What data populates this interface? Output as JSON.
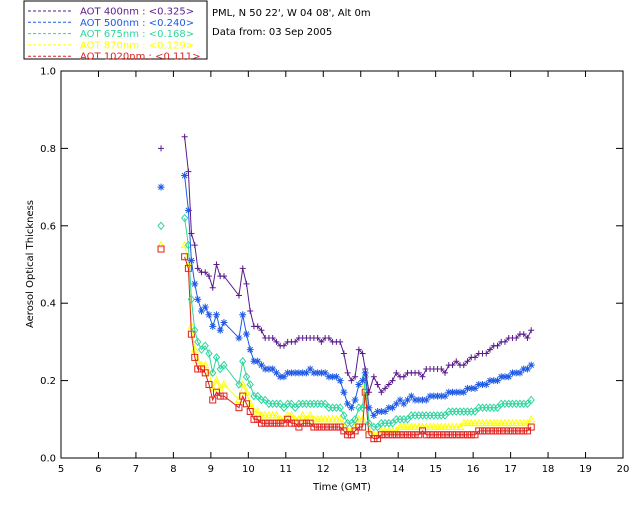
{
  "chart_data": {
    "type": "line",
    "xlabel": "Time (GMT)",
    "ylabel": "Aerosol Optical Thickness",
    "xlim": [
      5,
      20
    ],
    "ylim": [
      0,
      1.0
    ],
    "xticks": [
      5,
      6,
      7,
      8,
      9,
      10,
      11,
      12,
      13,
      14,
      15,
      16,
      17,
      18,
      19,
      20
    ],
    "yticks": [
      "0.0",
      "0.2",
      "0.4",
      "0.6",
      "0.8",
      "1.0"
    ],
    "grid": false,
    "legend_position": "top-left-outside",
    "info_lines": [
      "PML, N 50 22', W 04 08', Alt 0m",
      "Data from: 03 Sep 2005"
    ],
    "x": [
      7.67,
      8.3,
      8.4,
      8.48,
      8.57,
      8.65,
      8.75,
      8.85,
      8.95,
      9.05,
      9.15,
      9.25,
      9.35,
      9.75,
      9.85,
      9.95,
      10.05,
      10.15,
      10.25,
      10.35,
      10.45,
      10.55,
      10.65,
      10.75,
      10.85,
      10.95,
      11.05,
      11.15,
      11.25,
      11.35,
      11.45,
      11.55,
      11.65,
      11.75,
      11.85,
      11.95,
      12.05,
      12.15,
      12.25,
      12.35,
      12.45,
      12.55,
      12.65,
      12.75,
      12.85,
      12.95,
      13.05,
      13.12,
      13.22,
      13.35,
      13.45,
      13.55,
      13.65,
      13.75,
      13.85,
      13.95,
      14.05,
      14.15,
      14.25,
      14.35,
      14.45,
      14.55,
      14.65,
      14.75,
      14.85,
      14.95,
      15.05,
      15.15,
      15.25,
      15.35,
      15.45,
      15.55,
      15.65,
      15.75,
      15.85,
      15.95,
      16.05,
      16.15,
      16.25,
      16.35,
      16.45,
      16.55,
      16.65,
      16.75,
      16.85,
      16.95,
      17.05,
      17.15,
      17.25,
      17.35,
      17.45,
      17.55
    ],
    "series": [
      {
        "name": "AOT  400nm : <0.325>",
        "color": "#5a1a8c",
        "marker": "plus",
        "values": [
          0.8,
          0.83,
          0.74,
          0.58,
          0.55,
          0.49,
          0.48,
          0.48,
          0.47,
          0.44,
          0.5,
          0.47,
          0.47,
          0.42,
          0.49,
          0.45,
          0.38,
          0.34,
          0.34,
          0.33,
          0.31,
          0.31,
          0.31,
          0.3,
          0.29,
          0.29,
          0.3,
          0.3,
          0.3,
          0.31,
          0.31,
          0.31,
          0.31,
          0.31,
          0.31,
          0.3,
          0.31,
          0.31,
          0.3,
          0.3,
          0.3,
          0.27,
          0.22,
          0.2,
          0.21,
          0.28,
          0.27,
          0.23,
          0.17,
          0.21,
          0.19,
          0.17,
          0.18,
          0.19,
          0.2,
          0.22,
          0.21,
          0.21,
          0.22,
          0.22,
          0.22,
          0.22,
          0.21,
          0.23,
          0.23,
          0.23,
          0.23,
          0.23,
          0.22,
          0.24,
          0.24,
          0.25,
          0.24,
          0.24,
          0.25,
          0.26,
          0.26,
          0.27,
          0.27,
          0.27,
          0.28,
          0.29,
          0.29,
          0.3,
          0.3,
          0.31,
          0.31,
          0.31,
          0.32,
          0.32,
          0.31,
          0.33
        ]
      },
      {
        "name": "AOT  500nm : <0.240>",
        "color": "#1e5ae6",
        "marker": "asterisk",
        "values": [
          0.7,
          0.73,
          0.64,
          0.51,
          0.45,
          0.41,
          0.38,
          0.39,
          0.37,
          0.34,
          0.37,
          0.33,
          0.35,
          0.31,
          0.37,
          0.32,
          0.28,
          0.25,
          0.25,
          0.24,
          0.23,
          0.23,
          0.23,
          0.22,
          0.21,
          0.21,
          0.22,
          0.22,
          0.22,
          0.22,
          0.22,
          0.22,
          0.23,
          0.22,
          0.22,
          0.22,
          0.22,
          0.21,
          0.21,
          0.21,
          0.2,
          0.17,
          0.14,
          0.13,
          0.15,
          0.19,
          0.2,
          0.22,
          0.13,
          0.11,
          0.12,
          0.12,
          0.12,
          0.13,
          0.13,
          0.14,
          0.15,
          0.14,
          0.15,
          0.16,
          0.15,
          0.15,
          0.15,
          0.15,
          0.16,
          0.16,
          0.16,
          0.16,
          0.16,
          0.17,
          0.17,
          0.17,
          0.17,
          0.17,
          0.18,
          0.18,
          0.18,
          0.19,
          0.19,
          0.19,
          0.2,
          0.2,
          0.2,
          0.21,
          0.21,
          0.21,
          0.22,
          0.22,
          0.22,
          0.23,
          0.23,
          0.24
        ]
      },
      {
        "name": "AOT  675nm : <0.168>",
        "color": "#30d6a0",
        "marker": "diamond",
        "values": [
          0.6,
          0.62,
          0.55,
          0.41,
          0.33,
          0.3,
          0.28,
          0.29,
          0.27,
          0.22,
          0.26,
          0.23,
          0.24,
          0.19,
          0.25,
          0.21,
          0.19,
          0.16,
          0.16,
          0.15,
          0.15,
          0.14,
          0.14,
          0.14,
          0.14,
          0.13,
          0.14,
          0.14,
          0.13,
          0.14,
          0.14,
          0.14,
          0.14,
          0.14,
          0.14,
          0.14,
          0.14,
          0.13,
          0.13,
          0.13,
          0.13,
          0.11,
          0.09,
          0.09,
          0.1,
          0.13,
          0.13,
          0.21,
          0.09,
          0.08,
          0.08,
          0.09,
          0.09,
          0.09,
          0.09,
          0.1,
          0.1,
          0.1,
          0.1,
          0.11,
          0.11,
          0.11,
          0.11,
          0.11,
          0.11,
          0.11,
          0.11,
          0.11,
          0.11,
          0.12,
          0.12,
          0.12,
          0.12,
          0.12,
          0.12,
          0.12,
          0.12,
          0.13,
          0.13,
          0.13,
          0.13,
          0.13,
          0.13,
          0.14,
          0.14,
          0.14,
          0.14,
          0.14,
          0.14,
          0.14,
          0.14,
          0.15
        ]
      },
      {
        "name": "AOT  870nm : <0.129>",
        "color": "#ffff00",
        "marker": "triangle",
        "values": [
          0.55,
          0.55,
          0.5,
          0.34,
          0.28,
          0.25,
          0.24,
          0.24,
          0.22,
          0.18,
          0.2,
          0.18,
          0.19,
          0.15,
          0.19,
          0.17,
          0.14,
          0.12,
          0.12,
          0.11,
          0.11,
          0.11,
          0.11,
          0.11,
          0.1,
          0.1,
          0.11,
          0.11,
          0.1,
          0.1,
          0.11,
          0.1,
          0.11,
          0.1,
          0.1,
          0.1,
          0.1,
          0.1,
          0.1,
          0.1,
          0.1,
          0.08,
          0.07,
          0.07,
          0.08,
          0.1,
          0.1,
          0.19,
          0.07,
          0.06,
          0.06,
          0.07,
          0.07,
          0.07,
          0.07,
          0.07,
          0.08,
          0.08,
          0.08,
          0.08,
          0.08,
          0.08,
          0.08,
          0.08,
          0.08,
          0.08,
          0.08,
          0.08,
          0.08,
          0.08,
          0.08,
          0.08,
          0.08,
          0.09,
          0.09,
          0.09,
          0.09,
          0.09,
          0.09,
          0.09,
          0.09,
          0.09,
          0.09,
          0.09,
          0.09,
          0.09,
          0.09,
          0.09,
          0.09,
          0.09,
          0.09,
          0.1
        ]
      },
      {
        "name": "AOT 1020nm : <0.111>",
        "color": "#e0201e",
        "marker": "square",
        "values": [
          0.54,
          0.52,
          0.49,
          0.32,
          0.26,
          0.23,
          0.23,
          0.22,
          0.19,
          0.15,
          0.17,
          0.16,
          0.16,
          0.13,
          0.16,
          0.14,
          0.12,
          0.1,
          0.1,
          0.09,
          0.09,
          0.09,
          0.09,
          0.09,
          0.09,
          0.09,
          0.1,
          0.09,
          0.09,
          0.08,
          0.09,
          0.09,
          0.09,
          0.08,
          0.08,
          0.08,
          0.08,
          0.08,
          0.08,
          0.08,
          0.08,
          0.07,
          0.06,
          0.06,
          0.07,
          0.08,
          0.08,
          0.17,
          0.06,
          0.05,
          0.05,
          0.06,
          0.06,
          0.06,
          0.06,
          0.06,
          0.06,
          0.06,
          0.06,
          0.06,
          0.06,
          0.06,
          0.07,
          0.06,
          0.06,
          0.06,
          0.06,
          0.06,
          0.06,
          0.06,
          0.06,
          0.06,
          0.06,
          0.06,
          0.06,
          0.06,
          0.06,
          0.07,
          0.07,
          0.07,
          0.07,
          0.07,
          0.07,
          0.07,
          0.07,
          0.07,
          0.07,
          0.07,
          0.07,
          0.07,
          0.07,
          0.08
        ]
      }
    ]
  }
}
